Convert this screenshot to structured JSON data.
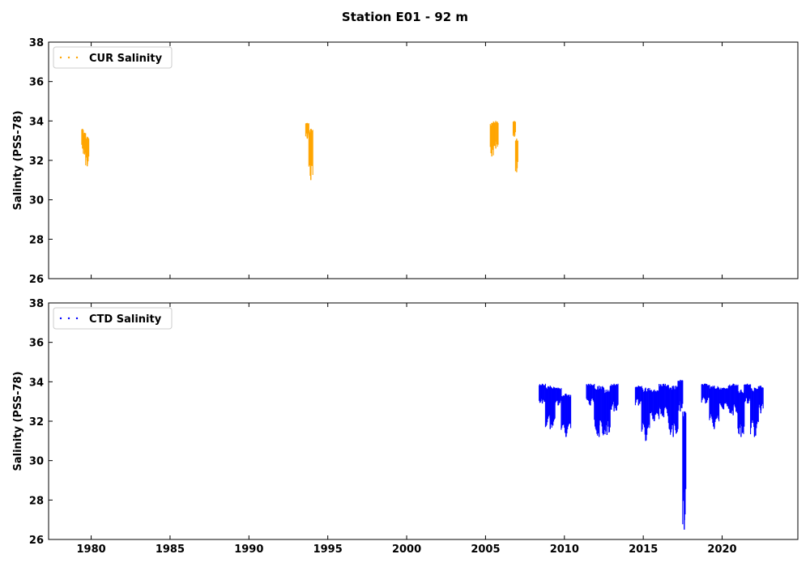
{
  "chart_data": {
    "type": "scatter",
    "title": "Station E01 - 92 m",
    "xlim": [
      1977.3,
      2024.8
    ],
    "x_ticks": [
      "1980",
      "1985",
      "1990",
      "1995",
      "2000",
      "2005",
      "2010",
      "2015",
      "2020"
    ],
    "y_ticks": [
      "26",
      "28",
      "30",
      "32",
      "34",
      "36",
      "38"
    ],
    "panels": [
      {
        "id": "cur",
        "ylabel": "Salinity (PSS-78)",
        "ylim": [
          26,
          38
        ],
        "legend": "CUR Salinity",
        "legend_position": "upper-left",
        "color": "#FFA500",
        "segments": [
          {
            "start": 1979.4,
            "end": 1979.5,
            "min": 32.6,
            "max": 33.6
          },
          {
            "start": 1979.5,
            "end": 1979.65,
            "min": 32.3,
            "max": 33.4
          },
          {
            "start": 1979.65,
            "end": 1979.85,
            "min": 31.7,
            "max": 33.2
          },
          {
            "start": 1993.6,
            "end": 1993.8,
            "min": 33.1,
            "max": 33.9
          },
          {
            "start": 1993.8,
            "end": 1994.05,
            "min": 31.0,
            "max": 33.6
          },
          {
            "start": 2005.3,
            "end": 2005.5,
            "min": 32.2,
            "max": 33.9
          },
          {
            "start": 2005.5,
            "end": 2005.8,
            "min": 32.6,
            "max": 34.0
          },
          {
            "start": 2006.75,
            "end": 2006.9,
            "min": 33.2,
            "max": 34.0
          },
          {
            "start": 2006.9,
            "end": 2007.05,
            "min": 31.4,
            "max": 33.1
          }
        ]
      },
      {
        "id": "ctd",
        "ylabel": "Salinity (PSS-78)",
        "ylim": [
          26,
          38
        ],
        "legend": "CTD Salinity",
        "legend_position": "upper-left",
        "color": "#0000FF",
        "segments": [
          {
            "start": 2008.4,
            "end": 2008.8,
            "min": 32.9,
            "max": 33.9
          },
          {
            "start": 2008.8,
            "end": 2009.4,
            "min": 31.6,
            "max": 33.8
          },
          {
            "start": 2009.4,
            "end": 2009.8,
            "min": 32.8,
            "max": 33.7
          },
          {
            "start": 2009.8,
            "end": 2010.4,
            "min": 31.2,
            "max": 33.4
          },
          {
            "start": 2011.4,
            "end": 2011.9,
            "min": 32.8,
            "max": 33.9
          },
          {
            "start": 2011.9,
            "end": 2012.5,
            "min": 31.2,
            "max": 33.8
          },
          {
            "start": 2012.5,
            "end": 2012.9,
            "min": 31.3,
            "max": 33.6
          },
          {
            "start": 2012.9,
            "end": 2013.4,
            "min": 32.5,
            "max": 33.9
          },
          {
            "start": 2014.5,
            "end": 2014.9,
            "min": 32.8,
            "max": 33.8
          },
          {
            "start": 2014.9,
            "end": 2015.4,
            "min": 31.0,
            "max": 33.7
          },
          {
            "start": 2015.4,
            "end": 2016.0,
            "min": 32.0,
            "max": 33.6
          },
          {
            "start": 2016.0,
            "end": 2016.6,
            "min": 32.2,
            "max": 33.9
          },
          {
            "start": 2016.6,
            "end": 2017.2,
            "min": 31.2,
            "max": 33.8
          },
          {
            "start": 2017.2,
            "end": 2017.5,
            "min": 32.5,
            "max": 34.1
          },
          {
            "start": 2017.5,
            "end": 2017.7,
            "min": 26.5,
            "max": 32.5
          },
          {
            "start": 2018.7,
            "end": 2019.2,
            "min": 32.9,
            "max": 33.9
          },
          {
            "start": 2019.2,
            "end": 2019.8,
            "min": 31.6,
            "max": 33.8
          },
          {
            "start": 2019.8,
            "end": 2020.4,
            "min": 32.6,
            "max": 33.7
          },
          {
            "start": 2020.4,
            "end": 2021.0,
            "min": 32.3,
            "max": 33.9
          },
          {
            "start": 2021.0,
            "end": 2021.4,
            "min": 31.2,
            "max": 33.6
          },
          {
            "start": 2021.4,
            "end": 2021.8,
            "min": 32.9,
            "max": 33.9
          },
          {
            "start": 2021.8,
            "end": 2022.3,
            "min": 31.2,
            "max": 33.7
          },
          {
            "start": 2022.3,
            "end": 2022.6,
            "min": 32.4,
            "max": 33.8
          }
        ]
      }
    ]
  }
}
